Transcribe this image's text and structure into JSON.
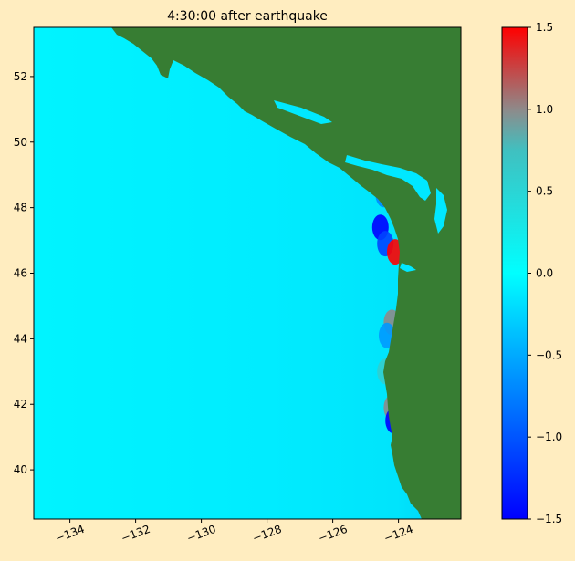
{
  "chart_data": {
    "type": "heatmap",
    "title": "4:30:00 after earthquake",
    "xlabel": "",
    "ylabel": "",
    "xlim": [
      -135.1,
      -122.1
    ],
    "ylim": [
      38.5,
      53.5
    ],
    "x_ticks": [
      -134,
      -132,
      -130,
      -128,
      -126,
      -124
    ],
    "x_tick_labels": [
      "−134",
      "−132",
      "−130",
      "−128",
      "−126",
      "−124"
    ],
    "y_ticks": [
      40,
      42,
      44,
      46,
      48,
      50,
      52
    ],
    "y_tick_labels": [
      "40",
      "42",
      "44",
      "46",
      "48",
      "50",
      "52"
    ],
    "grid": false,
    "colorbar": {
      "range": [
        -1.5,
        1.5
      ],
      "ticks": [
        -1.5,
        -1.0,
        -0.5,
        0.0,
        0.5,
        1.0,
        1.5
      ],
      "tick_labels": [
        "−1.5",
        "−1.0",
        "−0.5",
        "0.0",
        "0.5",
        "1.0",
        "1.5"
      ],
      "colors": [
        "#0000ff",
        "#00ffff",
        "#ff0000"
      ]
    },
    "colors": {
      "ocean": "#00f0ff",
      "land": "#377d33",
      "background": "#ffedc0"
    },
    "anomalies": [
      {
        "lon": -124.55,
        "lat": 47.4,
        "value": -1.5
      },
      {
        "lon": -124.4,
        "lat": 46.9,
        "value": -1.1
      },
      {
        "lon": -124.1,
        "lat": 46.65,
        "value": 1.5
      },
      {
        "lon": -124.2,
        "lat": 44.5,
        "value": 1.0
      },
      {
        "lon": -124.35,
        "lat": 44.1,
        "value": -0.6
      },
      {
        "lon": -124.4,
        "lat": 43.0,
        "value": 0.6
      },
      {
        "lon": -124.2,
        "lat": 41.9,
        "value": 1.0
      },
      {
        "lon": -124.15,
        "lat": 41.5,
        "value": -1.5
      },
      {
        "lon": -124.45,
        "lat": 48.4,
        "value": -0.7
      },
      {
        "lon": -124.8,
        "lat": 49.65,
        "value": 0.7
      }
    ]
  }
}
